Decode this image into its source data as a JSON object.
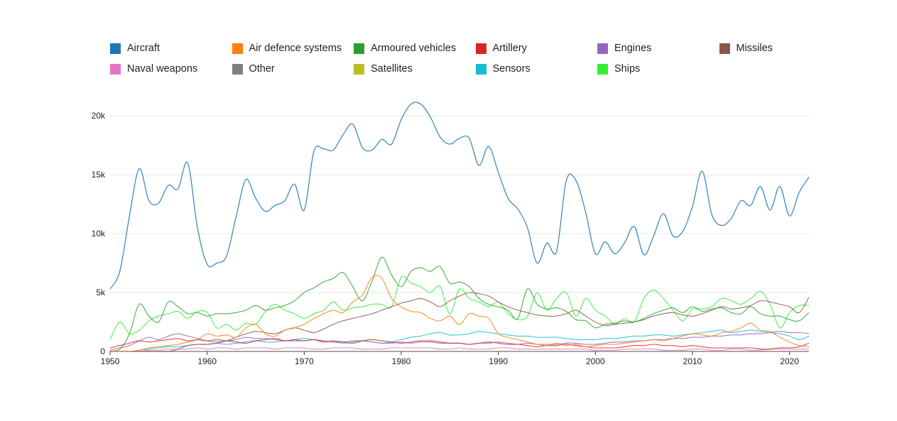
{
  "chart_data": {
    "type": "line",
    "title": "",
    "xlabel": "",
    "ylabel": "",
    "xlim": [
      1950,
      2022
    ],
    "ylim": [
      0,
      22000
    ],
    "grid": true,
    "legend_position": "top",
    "x_ticks": [
      1950,
      1960,
      1970,
      1980,
      1990,
      2000,
      2010,
      2020
    ],
    "x_tick_labels": [
      "1950",
      "1960",
      "1970",
      "1980",
      "1990",
      "2000",
      "2010",
      "2020"
    ],
    "y_ticks": [
      0,
      5000,
      10000,
      15000,
      20000
    ],
    "y_tick_labels": [
      "0",
      "5k",
      "10k",
      "15k",
      "20k"
    ],
    "x": [
      1950,
      1951,
      1952,
      1953,
      1954,
      1955,
      1956,
      1957,
      1958,
      1959,
      1960,
      1961,
      1962,
      1963,
      1964,
      1965,
      1966,
      1967,
      1968,
      1969,
      1970,
      1971,
      1972,
      1973,
      1974,
      1975,
      1976,
      1977,
      1978,
      1979,
      1980,
      1981,
      1982,
      1983,
      1984,
      1985,
      1986,
      1987,
      1988,
      1989,
      1990,
      1991,
      1992,
      1993,
      1994,
      1995,
      1996,
      1997,
      1998,
      1999,
      2000,
      2001,
      2002,
      2003,
      2004,
      2005,
      2006,
      2007,
      2008,
      2009,
      2010,
      2011,
      2012,
      2013,
      2014,
      2015,
      2016,
      2017,
      2018,
      2019,
      2020,
      2021,
      2022
    ],
    "series": [
      {
        "name": "Aircraft",
        "color": "#1f77b4",
        "values": [
          5300,
          6800,
          11500,
          15500,
          12800,
          12600,
          14100,
          13800,
          16000,
          10500,
          7400,
          7500,
          8100,
          11500,
          14600,
          13000,
          11900,
          12400,
          12800,
          14200,
          12000,
          17000,
          17200,
          17100,
          18400,
          19300,
          17300,
          17100,
          18000,
          17600,
          19700,
          21000,
          21000,
          19900,
          18200,
          17600,
          18100,
          18100,
          15800,
          17400,
          15200,
          13000,
          12100,
          10500,
          7500,
          9200,
          8500,
          14500,
          14500,
          11800,
          8300,
          9300,
          8300,
          9200,
          10600,
          8200,
          9800,
          11700,
          9800,
          10200,
          12300,
          15300,
          11600,
          10700,
          11300,
          12800,
          12400,
          14000,
          12000,
          14000,
          11500,
          13500,
          14800
        ]
      },
      {
        "name": "Air defence systems",
        "color": "#ff7f0e",
        "values": [
          0,
          0,
          0,
          100,
          300,
          400,
          500,
          600,
          800,
          1000,
          1500,
          1300,
          1400,
          1200,
          2000,
          2300,
          1500,
          1300,
          1800,
          2000,
          2300,
          2800,
          3200,
          3500,
          3300,
          4200,
          4800,
          6300,
          6200,
          4500,
          3800,
          3400,
          3300,
          2800,
          2600,
          3000,
          2300,
          3200,
          3000,
          2800,
          1500,
          1200,
          1000,
          800,
          600,
          500,
          700,
          500,
          600,
          400,
          500,
          600,
          600,
          700,
          800,
          900,
          1000,
          900,
          1100,
          1300,
          1500,
          1400,
          1300,
          1600,
          1700,
          2000,
          2400,
          1800,
          1700,
          1200,
          800,
          500,
          400
        ]
      },
      {
        "name": "Armoured vehicles",
        "color": "#2ca02c",
        "values": [
          0,
          200,
          1500,
          4000,
          3000,
          2500,
          4200,
          3800,
          3200,
          3300,
          3000,
          3200,
          3200,
          3300,
          3500,
          3900,
          3500,
          3700,
          3900,
          4300,
          5000,
          5400,
          5900,
          6200,
          6700,
          5500,
          4300,
          6000,
          8000,
          6500,
          5500,
          6800,
          7100,
          6800,
          7200,
          5800,
          5900,
          5500,
          4500,
          4000,
          3800,
          3500,
          2800,
          5300,
          4000,
          3600,
          3700,
          3400,
          2700,
          2600,
          2000,
          2300,
          2400,
          2600,
          2500,
          2800,
          3200,
          3500,
          3700,
          3300,
          3800,
          3400,
          3600,
          3700,
          3300,
          3200,
          3800,
          3200,
          3000,
          3000,
          2700,
          2600,
          3300
        ]
      },
      {
        "name": "Artillery",
        "color": "#d62728",
        "values": [
          300,
          500,
          700,
          900,
          800,
          900,
          1000,
          1100,
          900,
          1000,
          900,
          1000,
          900,
          800,
          700,
          900,
          1000,
          1100,
          900,
          1000,
          900,
          1000,
          800,
          900,
          800,
          700,
          900,
          1000,
          900,
          800,
          700,
          800,
          900,
          900,
          800,
          700,
          700,
          600,
          700,
          800,
          700,
          600,
          600,
          500,
          400,
          500,
          500,
          600,
          500,
          400,
          300,
          300,
          300,
          400,
          500,
          500,
          600,
          500,
          500,
          400,
          500,
          400,
          300,
          300,
          300,
          300,
          300,
          200,
          200,
          300,
          300,
          400,
          700
        ]
      },
      {
        "name": "Engines",
        "color": "#9467bd",
        "values": [
          100,
          300,
          500,
          900,
          1200,
          1000,
          1300,
          1500,
          1300,
          1100,
          900,
          800,
          900,
          1000,
          1200,
          1100,
          1100,
          1000,
          900,
          900,
          900,
          1000,
          900,
          800,
          800,
          900,
          900,
          800,
          700,
          700,
          800,
          700,
          800,
          800,
          700,
          700,
          700,
          600,
          700,
          700,
          800,
          700,
          600,
          700,
          600,
          600,
          600,
          700,
          700,
          600,
          600,
          700,
          800,
          800,
          900,
          900,
          1000,
          1000,
          1100,
          1100,
          1200,
          1200,
          1300,
          1300,
          1400,
          1400,
          1500,
          1500,
          1600,
          1700,
          1600,
          1600,
          1500
        ]
      },
      {
        "name": "Missiles",
        "color": "#8c564b",
        "values": [
          0,
          0,
          0,
          0,
          0,
          0,
          0,
          200,
          500,
          600,
          600,
          700,
          900,
          1200,
          1500,
          1700,
          1600,
          1500,
          1800,
          2000,
          1800,
          1600,
          1900,
          2300,
          2600,
          2800,
          3000,
          3200,
          3500,
          3800,
          4100,
          4300,
          4500,
          4200,
          3800,
          4300,
          4700,
          5000,
          4900,
          4700,
          4200,
          3800,
          3500,
          3300,
          3100,
          3000,
          3000,
          3200,
          3500,
          3000,
          2500,
          2200,
          2300,
          2400,
          2500,
          2700,
          3000,
          3200,
          3300,
          3100,
          3000,
          3200,
          3500,
          3800,
          3600,
          3700,
          3900,
          4300,
          4200,
          4000,
          3800,
          3300,
          4600
        ]
      },
      {
        "name": "Naval weapons",
        "color": "#e377c2",
        "values": [
          0,
          0,
          0,
          0,
          100,
          100,
          200,
          200,
          200,
          300,
          200,
          300,
          300,
          200,
          300,
          300,
          300,
          200,
          300,
          300,
          300,
          200,
          200,
          300,
          300,
          300,
          200,
          200,
          200,
          300,
          300,
          300,
          300,
          300,
          200,
          200,
          300,
          200,
          200,
          200,
          300,
          300,
          200,
          200,
          200,
          200,
          200,
          200,
          200,
          200,
          100,
          100,
          100,
          200,
          200,
          200,
          200,
          100,
          100,
          100,
          200,
          200,
          100,
          100,
          200,
          200,
          100,
          100,
          200,
          200,
          200,
          200,
          200
        ]
      },
      {
        "name": "Other",
        "color": "#7f7f7f",
        "values": [
          0,
          0,
          0,
          0,
          0,
          0,
          0,
          0,
          0,
          0,
          0,
          0,
          0,
          0,
          0,
          0,
          0,
          0,
          0,
          0,
          0,
          0,
          0,
          0,
          0,
          0,
          0,
          0,
          0,
          0,
          0,
          0,
          0,
          0,
          0,
          0,
          0,
          0,
          0,
          0,
          0,
          0,
          0,
          0,
          0,
          0,
          0,
          0,
          0,
          0,
          0,
          0,
          0,
          0,
          0,
          0,
          0,
          0,
          0,
          0,
          0,
          0,
          0,
          0,
          0,
          0,
          0,
          0,
          0,
          0,
          0,
          0,
          0
        ]
      },
      {
        "name": "Satellites",
        "color": "#bcbd22",
        "values": [
          0,
          0,
          0,
          0,
          0,
          0,
          0,
          0,
          0,
          0,
          0,
          0,
          0,
          0,
          0,
          0,
          0,
          0,
          0,
          0,
          0,
          0,
          0,
          0,
          0,
          0,
          0,
          0,
          0,
          0,
          0,
          0,
          0,
          0,
          0,
          0,
          0,
          0,
          0,
          0,
          0,
          0,
          0,
          0,
          0,
          0,
          0,
          0,
          0,
          0,
          0,
          0,
          0,
          0,
          0,
          0,
          0,
          0,
          0,
          0,
          0,
          0,
          0,
          0,
          0,
          0,
          0,
          0,
          0,
          0,
          0,
          0,
          0
        ]
      },
      {
        "name": "Sensors",
        "color": "#17becf",
        "values": [
          0,
          0,
          0,
          100,
          200,
          300,
          400,
          400,
          500,
          600,
          600,
          700,
          600,
          700,
          800,
          900,
          800,
          800,
          900,
          1000,
          1100,
          1000,
          900,
          800,
          700,
          800,
          900,
          800,
          700,
          800,
          1000,
          1200,
          1300,
          1500,
          1600,
          1400,
          1400,
          1500,
          1700,
          1600,
          1500,
          1400,
          1300,
          1300,
          1200,
          1200,
          1200,
          1100,
          1000,
          1000,
          1000,
          1100,
          1100,
          1200,
          1300,
          1300,
          1400,
          1400,
          1300,
          1400,
          1500,
          1600,
          1700,
          1800,
          1600,
          1700,
          1800,
          1700,
          1600,
          1500,
          1300,
          1000,
          1300
        ]
      },
      {
        "name": "Ships",
        "color": "#33ee33",
        "values": [
          1000,
          2500,
          1500,
          1800,
          2600,
          3000,
          3200,
          3400,
          2800,
          3400,
          3300,
          2000,
          2300,
          1800,
          2400,
          2300,
          3400,
          4000,
          3500,
          3200,
          2800,
          3200,
          3500,
          4200,
          3500,
          3700,
          3800,
          4000,
          4000,
          3800,
          6300,
          5800,
          5500,
          5000,
          5500,
          3200,
          5300,
          4500,
          4200,
          3800,
          4200,
          3200,
          2700,
          3000,
          5000,
          3500,
          4500,
          5000,
          3000,
          4500,
          3500,
          3000,
          2300,
          2800,
          2500,
          4500,
          5200,
          4500,
          3500,
          2600,
          3600,
          3600,
          3800,
          4500,
          4300,
          4000,
          4500,
          5100,
          4000,
          2000,
          3300,
          3900,
          3900
        ]
      }
    ]
  }
}
